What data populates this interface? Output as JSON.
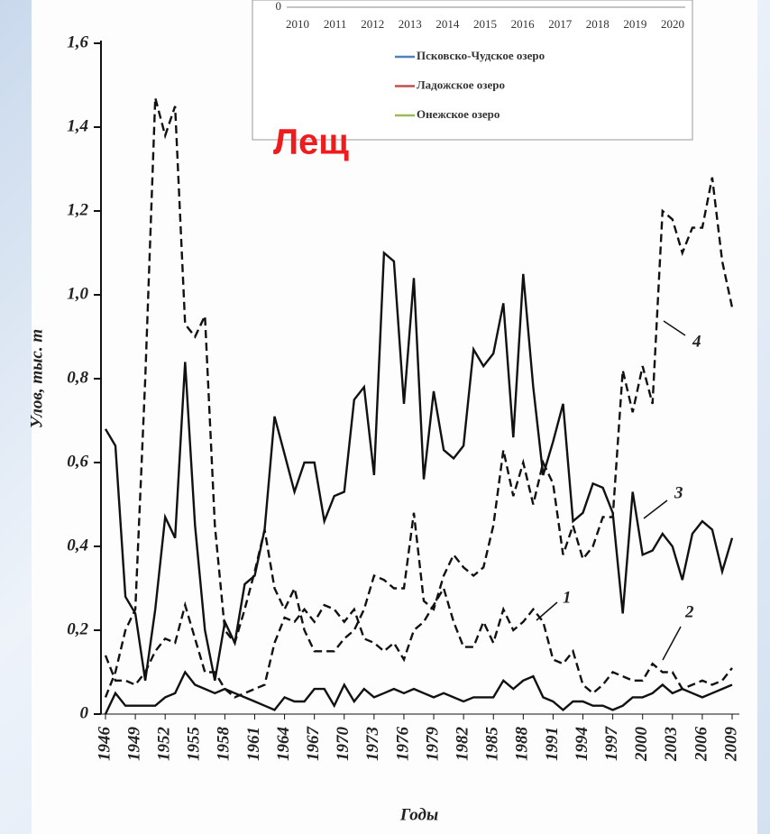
{
  "title": "Лещ",
  "chart_data": [
    {
      "type": "line",
      "x": [
        1946,
        1947,
        1948,
        1949,
        1950,
        1951,
        1952,
        1953,
        1954,
        1955,
        1956,
        1957,
        1958,
        1959,
        1960,
        1961,
        1962,
        1963,
        1964,
        1965,
        1966,
        1967,
        1968,
        1969,
        1970,
        1971,
        1972,
        1973,
        1974,
        1975,
        1976,
        1977,
        1978,
        1979,
        1980,
        1981,
        1982,
        1983,
        1984,
        1985,
        1986,
        1987,
        1988,
        1989,
        1990,
        1991,
        1992,
        1993,
        1994,
        1995,
        1996,
        1997,
        1998,
        1999,
        2000,
        2001,
        2002,
        2003,
        2004,
        2005,
        2006,
        2007,
        2008,
        2009
      ],
      "x_label": "Годы",
      "y_label": "Улов, тыс. т",
      "xlim": [
        1946,
        2009
      ],
      "xticks": [
        1946,
        1949,
        1952,
        1955,
        1958,
        1961,
        1964,
        1967,
        1970,
        1973,
        1976,
        1979,
        1982,
        1985,
        1988,
        1991,
        1994,
        1997,
        2000,
        2003,
        2006,
        2009
      ],
      "ylim": [
        0,
        1.6
      ],
      "yticks": [
        0,
        {
          "value": 0.2,
          "label": "0,2"
        },
        {
          "value": 0.4,
          "label": "0,4"
        },
        {
          "value": 0.6,
          "label": "0,6"
        },
        {
          "value": 0.8,
          "label": "0,8"
        },
        {
          "value": 1.0,
          "label": "1,0"
        },
        {
          "value": 1.2,
          "label": "1,2"
        },
        {
          "value": 1.4,
          "label": "1,4"
        },
        {
          "value": 1.6,
          "label": "1,6"
        }
      ],
      "series": [
        {
          "name": "1",
          "color": "#111111",
          "dashed": true,
          "values": [
            0.14,
            0.08,
            0.08,
            0.07,
            0.1,
            0.15,
            0.18,
            0.17,
            0.26,
            0.18,
            0.1,
            0.1,
            0.06,
            0.04,
            0.05,
            0.06,
            0.07,
            0.17,
            0.23,
            0.22,
            0.25,
            0.22,
            0.26,
            0.25,
            0.22,
            0.25,
            0.18,
            0.17,
            0.15,
            0.17,
            0.13,
            0.2,
            0.22,
            0.26,
            0.3,
            0.22,
            0.16,
            0.16,
            0.22,
            0.17,
            0.25,
            0.2,
            0.22,
            0.25,
            0.22,
            0.13,
            0.12,
            0.15,
            0.07,
            0.05,
            0.07,
            0.1,
            0.09,
            0.08,
            0.08,
            0.12,
            0.1,
            0.1,
            0.06,
            0.07,
            0.08,
            0.07,
            0.08,
            0.11
          ]
        },
        {
          "name": "2",
          "color": "#111111",
          "dashed": false,
          "values": [
            0.0,
            0.05,
            0.02,
            0.02,
            0.02,
            0.02,
            0.04,
            0.05,
            0.1,
            0.07,
            0.06,
            0.05,
            0.06,
            0.05,
            0.04,
            0.03,
            0.02,
            0.01,
            0.04,
            0.03,
            0.03,
            0.06,
            0.06,
            0.02,
            0.07,
            0.03,
            0.06,
            0.04,
            0.05,
            0.06,
            0.05,
            0.06,
            0.05,
            0.04,
            0.05,
            0.04,
            0.03,
            0.04,
            0.04,
            0.04,
            0.08,
            0.06,
            0.08,
            0.09,
            0.04,
            0.03,
            0.01,
            0.03,
            0.03,
            0.02,
            0.02,
            0.01,
            0.02,
            0.04,
            0.04,
            0.05,
            0.07,
            0.05,
            0.06,
            0.05,
            0.04,
            0.05,
            0.06,
            0.07
          ]
        },
        {
          "name": "3",
          "color": "#111111",
          "dashed": false,
          "values": [
            0.68,
            0.64,
            0.28,
            0.24,
            0.08,
            0.25,
            0.47,
            0.42,
            0.84,
            0.45,
            0.2,
            0.08,
            0.22,
            0.17,
            0.31,
            0.33,
            0.44,
            0.71,
            0.62,
            0.53,
            0.6,
            0.6,
            0.46,
            0.52,
            0.53,
            0.75,
            0.78,
            0.57,
            1.1,
            1.08,
            0.74,
            1.04,
            0.56,
            0.77,
            0.63,
            0.61,
            0.64,
            0.87,
            0.83,
            0.86,
            0.98,
            0.66,
            1.05,
            0.78,
            0.57,
            0.65,
            0.74,
            0.46,
            0.48,
            0.55,
            0.54,
            0.48,
            0.24,
            0.53,
            0.38,
            0.39,
            0.43,
            0.4,
            0.32,
            0.43,
            0.46,
            0.44,
            0.34,
            0.42
          ]
        },
        {
          "name": "4",
          "color": "#111111",
          "dashed": true,
          "values": [
            0.04,
            0.1,
            0.2,
            0.25,
            0.8,
            1.47,
            1.38,
            1.45,
            0.93,
            0.9,
            0.95,
            0.45,
            0.2,
            0.17,
            0.25,
            0.34,
            0.44,
            0.3,
            0.25,
            0.3,
            0.2,
            0.15,
            0.15,
            0.15,
            0.18,
            0.2,
            0.25,
            0.33,
            0.32,
            0.3,
            0.3,
            0.48,
            0.27,
            0.25,
            0.33,
            0.38,
            0.35,
            0.33,
            0.35,
            0.45,
            0.63,
            0.52,
            0.6,
            0.5,
            0.6,
            0.55,
            0.38,
            0.45,
            0.37,
            0.4,
            0.47,
            0.47,
            0.82,
            0.72,
            0.83,
            0.74,
            1.2,
            1.18,
            1.1,
            1.16,
            1.16,
            1.28,
            1.08,
            0.97
          ]
        }
      ]
    },
    {
      "type": "legend",
      "categories": [
        "2010",
        "2011",
        "2012",
        "2013",
        "2014",
        "2015",
        "2016",
        "2017",
        "2018",
        "2019",
        "2020"
      ],
      "yticks": [
        0
      ],
      "legend": [
        {
          "name": "Псковско-Чудское озеро",
          "color": "#4f81bd"
        },
        {
          "name": "Ладожское озеро",
          "color": "#c0504d"
        },
        {
          "name": "Онежское озеро",
          "color": "#9bbb59"
        }
      ]
    }
  ]
}
